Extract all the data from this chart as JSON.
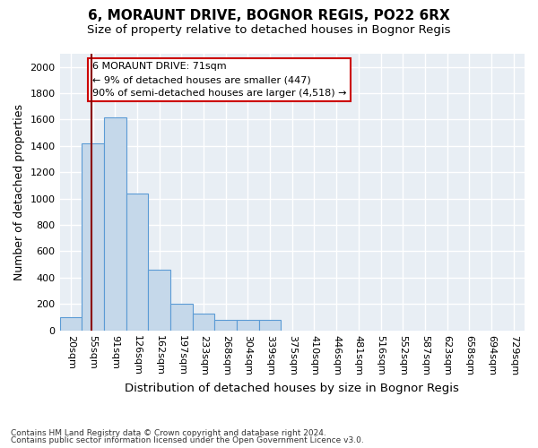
{
  "title": "6, MORAUNT DRIVE, BOGNOR REGIS, PO22 6RX",
  "subtitle": "Size of property relative to detached houses in Bognor Regis",
  "xlabel": "Distribution of detached houses by size in Bognor Regis",
  "ylabel": "Number of detached properties",
  "footnote1": "Contains HM Land Registry data © Crown copyright and database right 2024.",
  "footnote2": "Contains public sector information licensed under the Open Government Licence v3.0.",
  "bin_labels": [
    "20sqm",
    "55sqm",
    "91sqm",
    "126sqm",
    "162sqm",
    "197sqm",
    "233sqm",
    "268sqm",
    "304sqm",
    "339sqm",
    "375sqm",
    "410sqm",
    "446sqm",
    "481sqm",
    "516sqm",
    "552sqm",
    "587sqm",
    "623sqm",
    "658sqm",
    "694sqm",
    "729sqm"
  ],
  "bar_heights": [
    100,
    1420,
    1620,
    1040,
    460,
    200,
    130,
    80,
    80,
    80,
    0,
    0,
    0,
    0,
    0,
    0,
    0,
    0,
    0,
    0,
    0
  ],
  "bar_color": "#c5d8ea",
  "bar_edge_color": "#5b9bd5",
  "ylim": [
    0,
    2100
  ],
  "yticks": [
    0,
    200,
    400,
    600,
    800,
    1000,
    1200,
    1400,
    1600,
    1800,
    2000
  ],
  "property_label": "6 MORAUNT DRIVE: 71sqm",
  "annotation_line1": "← 9% of detached houses are smaller (447)",
  "annotation_line2": "90% of semi-detached houses are larger (4,518) →",
  "vline_color": "#8b0000",
  "background_color": "#e8eef4",
  "grid_color": "#ffffff",
  "title_fontsize": 11,
  "subtitle_fontsize": 9.5,
  "axis_label_fontsize": 9,
  "tick_fontsize": 8
}
